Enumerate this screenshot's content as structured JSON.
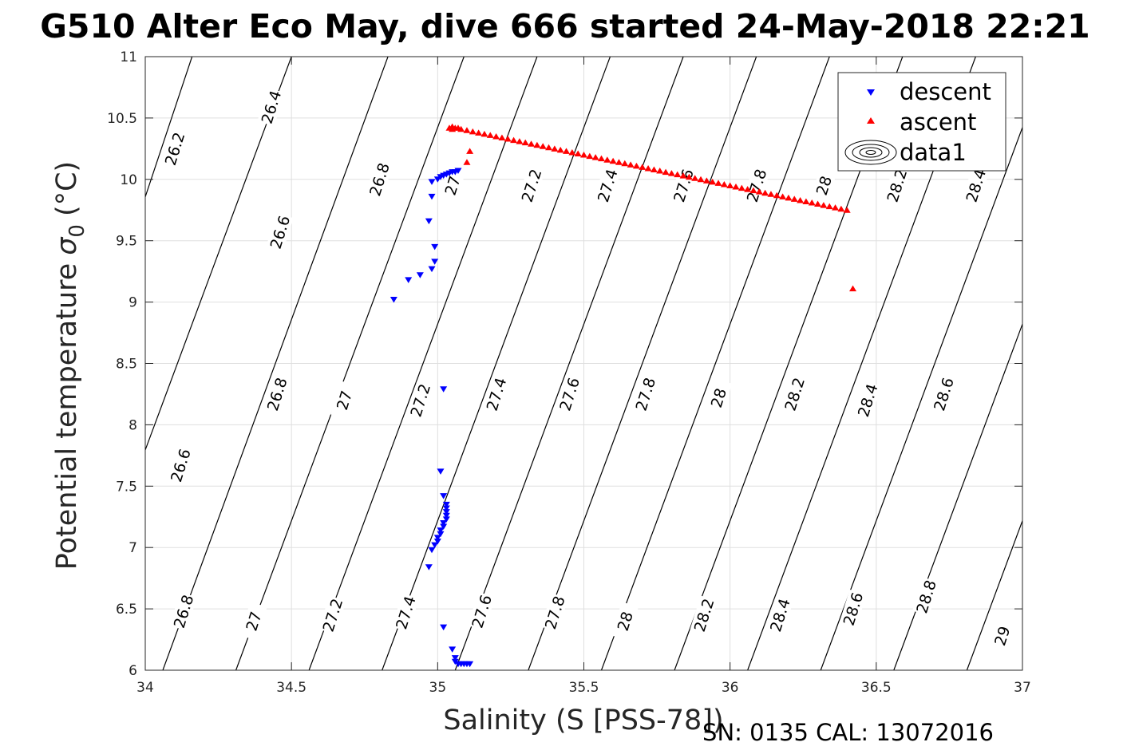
{
  "figure": {
    "title": "G510 Alter Eco May, dive 666 started 24-May-2018 22:21",
    "footer": "SN: 0135  CAL: 13072016"
  },
  "chart_data": {
    "type": "scatter",
    "title": "G510 Alter Eco May, dive 666 started 24-May-2018 22:21",
    "xlabel": "Salinity (S [PSS-78])",
    "ylabel": "Potential temperature",
    "ylabel_symbol": "σ",
    "ylabel_subscript": "0",
    "ylabel_unit": "(°C)",
    "xlim": [
      34,
      37
    ],
    "ylim": [
      6,
      11
    ],
    "xticks": [
      34,
      34.5,
      35,
      35.5,
      36,
      36.5,
      37
    ],
    "yticks": [
      6,
      6.5,
      7,
      7.5,
      8,
      8.5,
      9,
      9.5,
      10,
      10.5,
      11
    ],
    "grid": true,
    "legend_position": "top-right",
    "legend": [
      {
        "label": "descent",
        "marker": "triangle-down",
        "color": "#0000ff"
      },
      {
        "label": "ascent",
        "marker": "triangle-up",
        "color": "#ff0000"
      },
      {
        "label": "data1",
        "marker": "contour",
        "color": "#000000"
      }
    ],
    "contours": {
      "line_color": "#000000",
      "levels": [
        {
          "sigma": 26.2,
          "s_at_6": 33.2,
          "s_at_11": 33.86
        },
        {
          "sigma": 26.4,
          "s_at_6": 33.46,
          "s_at_11": 34.16
        },
        {
          "sigma": 26.6,
          "s_at_6": 33.72,
          "s_at_11": 34.5
        },
        {
          "sigma": 26.8,
          "s_at_6": 34.06,
          "s_at_11": 34.83
        },
        {
          "sigma": 27.0,
          "s_at_6": 34.31,
          "s_at_11": 35.09
        },
        {
          "sigma": 27.2,
          "s_at_6": 34.56,
          "s_at_11": 35.34
        },
        {
          "sigma": 27.4,
          "s_at_6": 34.81,
          "s_at_11": 35.59
        },
        {
          "sigma": 27.6,
          "s_at_6": 35.06,
          "s_at_11": 35.84
        },
        {
          "sigma": 27.8,
          "s_at_6": 35.31,
          "s_at_11": 36.09
        },
        {
          "sigma": 28.0,
          "s_at_6": 35.56,
          "s_at_11": 36.34
        },
        {
          "sigma": 28.2,
          "s_at_6": 35.81,
          "s_at_11": 36.59
        },
        {
          "sigma": 28.4,
          "s_at_6": 36.06,
          "s_at_11": 36.84
        },
        {
          "sigma": 28.6,
          "s_at_6": 36.31,
          "s_at_11": 37.09
        },
        {
          "sigma": 28.8,
          "s_at_6": 36.56,
          "s_at_11": 37.34
        },
        {
          "sigma": 29.0,
          "s_at_6": 36.81,
          "s_at_11": 37.59
        },
        {
          "sigma": 29.2,
          "s_at_6": 37.06,
          "s_at_11": 37.84
        }
      ],
      "labels": [
        {
          "text": "26.2",
          "s": 34.1,
          "t": 10.25
        },
        {
          "text": "26.4",
          "s": 34.43,
          "t": 10.59
        },
        {
          "text": "26.6",
          "s": 34.46,
          "t": 9.57
        },
        {
          "text": "26.8",
          "s": 34.8,
          "t": 10.0
        },
        {
          "text": "27",
          "s": 35.05,
          "t": 9.95
        },
        {
          "text": "27.2",
          "s": 35.32,
          "t": 9.95
        },
        {
          "text": "27.4",
          "s": 35.58,
          "t": 9.95
        },
        {
          "text": "27.6",
          "s": 35.84,
          "t": 9.95
        },
        {
          "text": "27.8",
          "s": 36.09,
          "t": 9.95
        },
        {
          "text": "28",
          "s": 36.32,
          "t": 9.95
        },
        {
          "text": "28.2",
          "s": 36.57,
          "t": 9.95
        },
        {
          "text": "28.4",
          "s": 36.84,
          "t": 9.95
        },
        {
          "text": "26.6",
          "s": 34.12,
          "t": 7.67
        },
        {
          "text": "26.8",
          "s": 34.45,
          "t": 8.25
        },
        {
          "text": "27",
          "s": 34.68,
          "t": 8.2
        },
        {
          "text": "27.2",
          "s": 34.94,
          "t": 8.2
        },
        {
          "text": "27.4",
          "s": 35.2,
          "t": 8.25
        },
        {
          "text": "27.6",
          "s": 35.45,
          "t": 8.25
        },
        {
          "text": "27.8",
          "s": 35.71,
          "t": 8.25
        },
        {
          "text": "28",
          "s": 35.96,
          "t": 8.22
        },
        {
          "text": "28.2",
          "s": 36.22,
          "t": 8.25
        },
        {
          "text": "28.4",
          "s": 36.47,
          "t": 8.2
        },
        {
          "text": "28.6",
          "s": 36.73,
          "t": 8.25
        },
        {
          "text": "26.8",
          "s": 34.13,
          "t": 6.48
        },
        {
          "text": "27",
          "s": 34.37,
          "t": 6.4
        },
        {
          "text": "27.2",
          "s": 34.64,
          "t": 6.45
        },
        {
          "text": "27.4",
          "s": 34.89,
          "t": 6.47
        },
        {
          "text": "27.6",
          "s": 35.15,
          "t": 6.48
        },
        {
          "text": "27.8",
          "s": 35.4,
          "t": 6.47
        },
        {
          "text": "28",
          "s": 35.64,
          "t": 6.4
        },
        {
          "text": "28.2",
          "s": 35.91,
          "t": 6.45
        },
        {
          "text": "28.4",
          "s": 36.17,
          "t": 6.45
        },
        {
          "text": "28.6",
          "s": 36.42,
          "t": 6.5
        },
        {
          "text": "28.8",
          "s": 36.67,
          "t": 6.6
        },
        {
          "text": "29",
          "s": 36.93,
          "t": 6.28
        }
      ]
    },
    "series": [
      {
        "name": "descent",
        "marker": "triangle-down",
        "color": "#0000ff",
        "points": [
          [
            34.85,
            9.02
          ],
          [
            34.9,
            9.18
          ],
          [
            34.94,
            9.22
          ],
          [
            34.98,
            9.27
          ],
          [
            34.99,
            9.33
          ],
          [
            34.99,
            9.45
          ],
          [
            34.97,
            9.66
          ],
          [
            34.98,
            9.86
          ],
          [
            34.98,
            9.98
          ],
          [
            35.0,
            10.0
          ],
          [
            35.01,
            10.02
          ],
          [
            35.02,
            10.03
          ],
          [
            35.03,
            10.04
          ],
          [
            35.04,
            10.05
          ],
          [
            35.05,
            10.06
          ],
          [
            35.06,
            10.06
          ],
          [
            35.07,
            10.07
          ],
          [
            35.02,
            8.29
          ],
          [
            35.01,
            7.62
          ],
          [
            35.02,
            7.42
          ],
          [
            35.03,
            7.35
          ],
          [
            35.03,
            7.32
          ],
          [
            35.03,
            7.29
          ],
          [
            35.03,
            7.26
          ],
          [
            35.03,
            7.23
          ],
          [
            35.02,
            7.2
          ],
          [
            35.02,
            7.17
          ],
          [
            35.01,
            7.14
          ],
          [
            35.01,
            7.11
          ],
          [
            35.0,
            7.08
          ],
          [
            35.0,
            7.05
          ],
          [
            34.99,
            7.02
          ],
          [
            34.98,
            6.98
          ],
          [
            34.97,
            6.84
          ],
          [
            35.02,
            6.35
          ],
          [
            35.05,
            6.17
          ],
          [
            35.06,
            6.1
          ],
          [
            35.06,
            6.07
          ],
          [
            35.07,
            6.05
          ],
          [
            35.08,
            6.05
          ],
          [
            35.09,
            6.05
          ],
          [
            35.1,
            6.05
          ],
          [
            35.11,
            6.05
          ]
        ]
      },
      {
        "name": "ascent",
        "marker": "triangle-up",
        "color": "#ff0000",
        "points": [
          [
            35.04,
            10.42
          ],
          [
            35.05,
            10.43
          ],
          [
            35.06,
            10.42
          ],
          [
            35.07,
            10.42
          ],
          [
            35.05,
            10.41
          ],
          [
            35.11,
            10.23
          ],
          [
            35.1,
            10.14
          ],
          [
            35.08,
            10.41
          ],
          [
            35.1,
            10.4
          ],
          [
            35.12,
            10.39
          ],
          [
            35.14,
            10.38
          ],
          [
            35.16,
            10.37
          ],
          [
            35.18,
            10.36
          ],
          [
            35.2,
            10.35
          ],
          [
            35.22,
            10.34
          ],
          [
            35.24,
            10.33
          ],
          [
            35.26,
            10.32
          ],
          [
            35.28,
            10.31
          ],
          [
            35.3,
            10.3
          ],
          [
            35.32,
            10.29
          ],
          [
            35.34,
            10.28
          ],
          [
            35.36,
            10.27
          ],
          [
            35.38,
            10.26
          ],
          [
            35.4,
            10.25
          ],
          [
            35.42,
            10.24
          ],
          [
            35.44,
            10.23
          ],
          [
            35.46,
            10.22
          ],
          [
            35.48,
            10.21
          ],
          [
            35.5,
            10.2
          ],
          [
            35.52,
            10.19
          ],
          [
            35.54,
            10.18
          ],
          [
            35.56,
            10.17
          ],
          [
            35.58,
            10.16
          ],
          [
            35.6,
            10.15
          ],
          [
            35.62,
            10.14
          ],
          [
            35.64,
            10.13
          ],
          [
            35.66,
            10.12
          ],
          [
            35.68,
            10.11
          ],
          [
            35.7,
            10.1
          ],
          [
            35.72,
            10.09
          ],
          [
            35.74,
            10.08
          ],
          [
            35.76,
            10.07
          ],
          [
            35.78,
            10.06
          ],
          [
            35.8,
            10.05
          ],
          [
            35.82,
            10.04
          ],
          [
            35.84,
            10.03
          ],
          [
            35.86,
            10.02
          ],
          [
            35.88,
            10.01
          ],
          [
            35.9,
            10.0
          ],
          [
            35.92,
            9.99
          ],
          [
            35.94,
            9.98
          ],
          [
            35.96,
            9.97
          ],
          [
            35.98,
            9.96
          ],
          [
            36.0,
            9.95
          ],
          [
            36.02,
            9.94
          ],
          [
            36.04,
            9.93
          ],
          [
            36.06,
            9.92
          ],
          [
            36.08,
            9.91
          ],
          [
            36.1,
            9.9
          ],
          [
            36.12,
            9.89
          ],
          [
            36.14,
            9.88
          ],
          [
            36.16,
            9.87
          ],
          [
            36.18,
            9.86
          ],
          [
            36.2,
            9.85
          ],
          [
            36.22,
            9.84
          ],
          [
            36.24,
            9.83
          ],
          [
            36.26,
            9.82
          ],
          [
            36.28,
            9.81
          ],
          [
            36.3,
            9.8
          ],
          [
            36.32,
            9.79
          ],
          [
            36.34,
            9.78
          ],
          [
            36.36,
            9.77
          ],
          [
            36.38,
            9.76
          ],
          [
            36.4,
            9.75
          ],
          [
            36.42,
            9.11
          ]
        ]
      }
    ]
  }
}
